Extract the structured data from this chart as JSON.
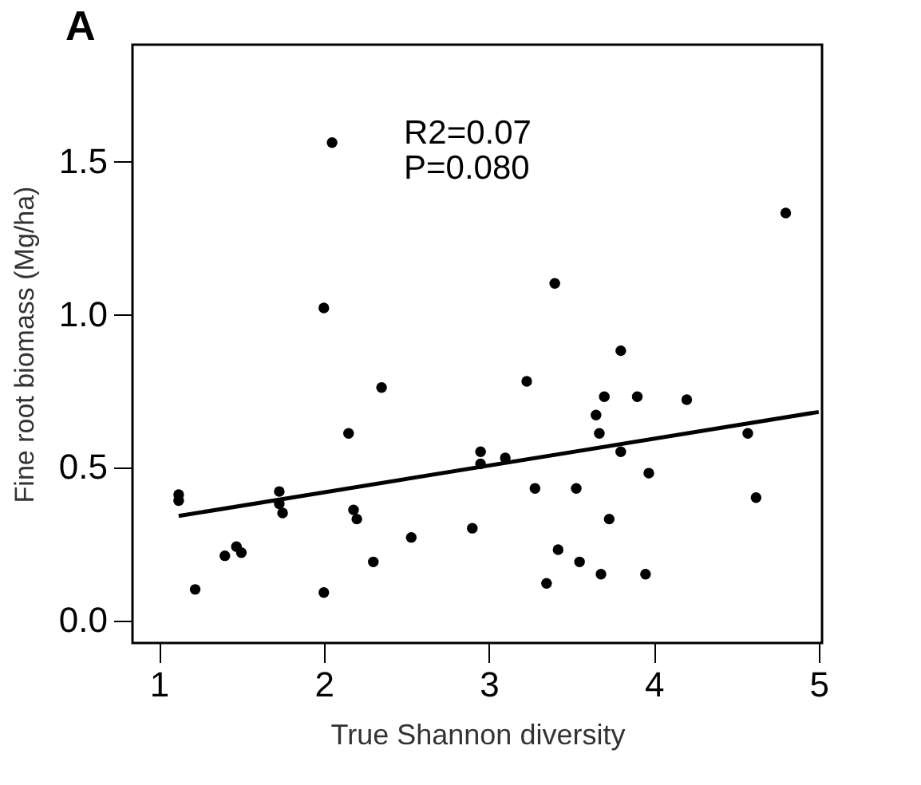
{
  "chart_data": {
    "type": "scatter",
    "title": "A",
    "xlabel": "True Shannon diversity",
    "ylabel": "Fine root biomass (Mg/ha)",
    "xlim": [
      0.84,
      5.02
    ],
    "xticks": [
      1,
      2,
      3,
      4,
      5
    ],
    "ylim": [
      -0.075,
      1.88
    ],
    "yticks": [
      {
        "value": 0,
        "label": "0.0"
      },
      0.5,
      {
        "value": 1,
        "label": "1.0"
      },
      1.5
    ],
    "grid": false,
    "annotations": [
      "R2=0.07",
      "P=0.080"
    ],
    "series": [
      {
        "marker": "circle",
        "color": "#000000",
        "x": [
          1.12,
          1.12,
          1.22,
          1.4,
          1.47,
          1.5,
          1.73,
          1.73,
          1.75,
          2.0,
          2.0,
          2.05,
          2.15,
          2.18,
          2.2,
          2.3,
          2.35,
          2.53,
          2.9,
          2.95,
          2.95,
          3.1,
          3.23,
          3.28,
          3.35,
          3.4,
          3.42,
          3.53,
          3.55,
          3.65,
          3.67,
          3.68,
          3.7,
          3.73,
          3.8,
          3.8,
          3.9,
          3.95,
          3.97,
          4.2,
          4.57,
          4.62,
          4.8
        ],
        "values": [
          0.41,
          0.39,
          0.1,
          0.21,
          0.24,
          0.22,
          0.42,
          0.38,
          0.35,
          1.02,
          0.09,
          1.56,
          0.61,
          0.36,
          0.33,
          0.19,
          0.76,
          0.27,
          0.3,
          0.55,
          0.51,
          0.53,
          0.78,
          0.43,
          0.12,
          1.1,
          0.23,
          0.43,
          0.19,
          0.67,
          0.61,
          0.15,
          0.73,
          0.33,
          0.88,
          0.55,
          0.73,
          0.15,
          0.48,
          0.72,
          0.61,
          0.4,
          1.33
        ]
      },
      {
        "type": "line",
        "color": "#000000",
        "line_style": "solid",
        "x": [
          1.12,
          5.0
        ],
        "values": [
          0.34,
          0.68
        ]
      }
    ]
  }
}
